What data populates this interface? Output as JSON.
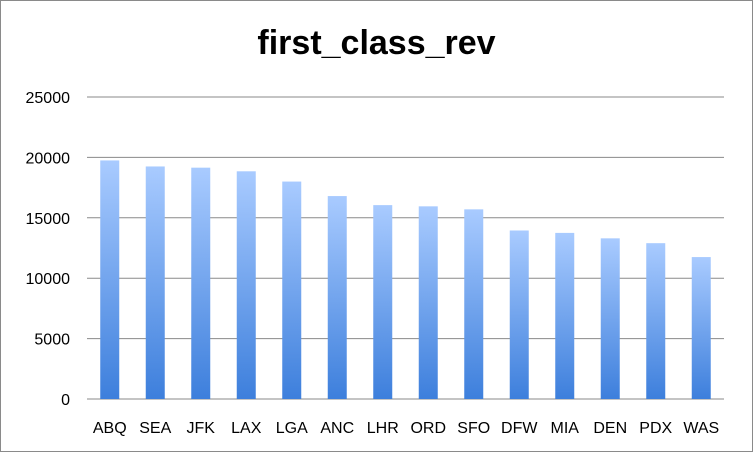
{
  "chart_data": {
    "type": "bar",
    "title": "first_class_rev",
    "xlabel": "",
    "ylabel": "",
    "categories": [
      "ABQ",
      "SEA",
      "JFK",
      "LAX",
      "LGA",
      "ANC",
      "LHR",
      "ORD",
      "SFO",
      "DFW",
      "MIA",
      "DEN",
      "PDX",
      "WAS"
    ],
    "values": [
      19750,
      19250,
      19150,
      18850,
      18000,
      16800,
      16050,
      15950,
      15700,
      13950,
      13750,
      13300,
      12900,
      11750
    ],
    "ylim": [
      0,
      25000
    ],
    "yticks": [
      0,
      5000,
      10000,
      15000,
      20000,
      25000
    ],
    "grid": true,
    "legend": "none",
    "colors": {
      "bar_top": "#a9cbff",
      "bar_bottom": "#3d7fdc",
      "grid": "#8a8a8a",
      "frame": "#8a8a8a"
    }
  }
}
